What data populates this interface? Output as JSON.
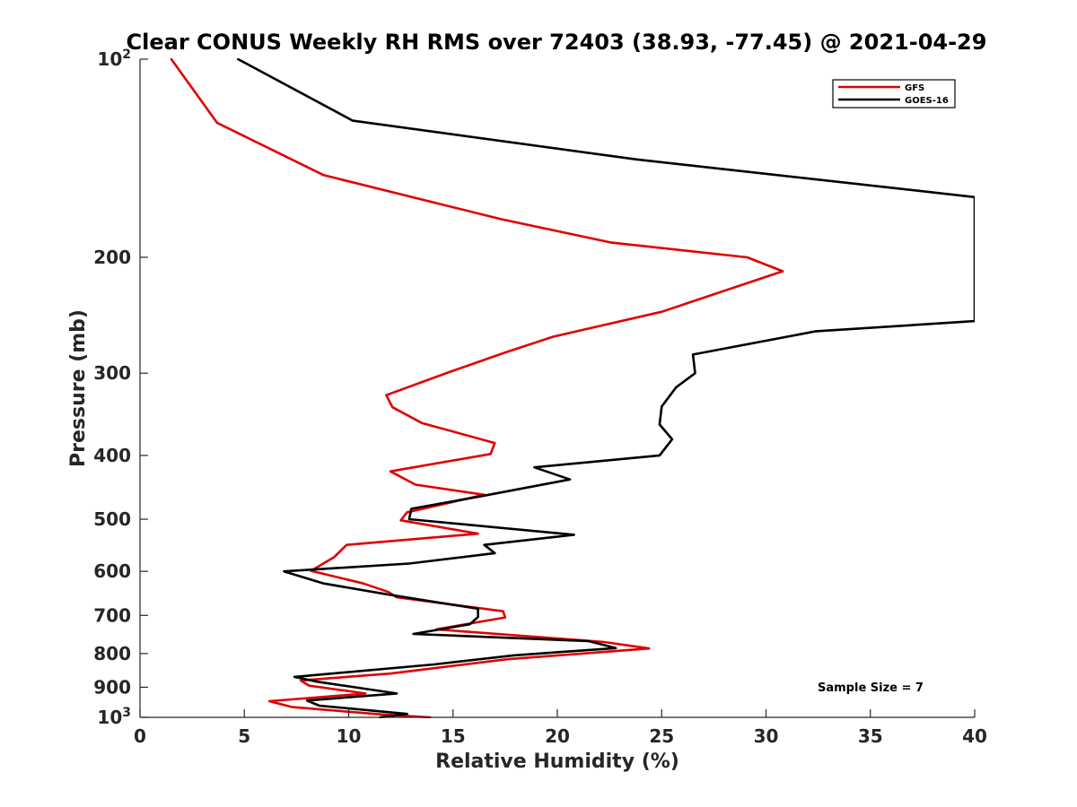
{
  "chart_data": {
    "type": "line",
    "title": "Clear CONUS Weekly RH RMS over 72403 (38.93, -77.45) @ 2021-04-29",
    "xlabel": "Relative Humidity (%)",
    "ylabel": "Pressure (mb)",
    "xlim": [
      0,
      40
    ],
    "ylim": [
      100,
      1000
    ],
    "yscale": "log",
    "y_reversed": true,
    "grid": false,
    "legend_location": "top-right",
    "x_ticks": [
      "0",
      "5",
      "10",
      "15",
      "20",
      "25",
      "30",
      "35",
      "40"
    ],
    "y_ticks": [
      {
        "value": 100,
        "base": "10",
        "exp": "2"
      },
      {
        "value": 200,
        "base": "200",
        "exp": ""
      },
      {
        "value": 300,
        "base": "300",
        "exp": ""
      },
      {
        "value": 400,
        "base": "400",
        "exp": ""
      },
      {
        "value": 500,
        "base": "500",
        "exp": ""
      },
      {
        "value": 600,
        "base": "600",
        "exp": ""
      },
      {
        "value": 700,
        "base": "700",
        "exp": ""
      },
      {
        "value": 800,
        "base": "800",
        "exp": ""
      },
      {
        "value": 900,
        "base": "900",
        "exp": ""
      },
      {
        "value": 1000,
        "base": "10",
        "exp": "3"
      }
    ],
    "annotation": "Sample Size = 7",
    "series": [
      {
        "name": "GFS",
        "color": "#e00000",
        "points": [
          [
            1.5,
            100
          ],
          [
            3.7,
            125
          ],
          [
            8.8,
            150
          ],
          [
            17.3,
            175
          ],
          [
            22.6,
            190
          ],
          [
            29.1,
            200
          ],
          [
            30.8,
            210
          ],
          [
            25.0,
            242
          ],
          [
            19.8,
            264
          ],
          [
            17.5,
            279
          ],
          [
            14.8,
            299
          ],
          [
            11.8,
            324
          ],
          [
            12.1,
            338
          ],
          [
            13.5,
            357
          ],
          [
            17.0,
            383
          ],
          [
            16.8,
            398
          ],
          [
            12.0,
            423
          ],
          [
            13.2,
            443
          ],
          [
            16.5,
            459
          ],
          [
            12.8,
            488
          ],
          [
            12.5,
            502
          ],
          [
            16.2,
            526
          ],
          [
            9.9,
            547
          ],
          [
            9.3,
            571
          ],
          [
            8.2,
            599
          ],
          [
            10.7,
            626
          ],
          [
            11.9,
            645
          ],
          [
            12.3,
            657
          ],
          [
            17.4,
            690
          ],
          [
            17.5,
            705
          ],
          [
            14.2,
            735
          ],
          [
            22.2,
            768
          ],
          [
            24.4,
            786
          ],
          [
            17.6,
            816
          ],
          [
            12.0,
            858
          ],
          [
            7.7,
            879
          ],
          [
            8.1,
            895
          ],
          [
            10.8,
            920
          ],
          [
            6.2,
            945
          ],
          [
            7.3,
            965
          ],
          [
            11.6,
            990
          ],
          [
            13.9,
            1000
          ]
        ]
      },
      {
        "name": "GOES-16",
        "color": "#000000",
        "points": [
          [
            4.7,
            100
          ],
          [
            10.2,
            124
          ],
          [
            23.8,
            142
          ],
          [
            40.0,
            162
          ],
          [
            40.0,
            250
          ],
          [
            32.4,
            259
          ],
          [
            26.5,
            281
          ],
          [
            26.6,
            300
          ],
          [
            25.7,
            315
          ],
          [
            25.0,
            337
          ],
          [
            24.9,
            359
          ],
          [
            25.5,
            378
          ],
          [
            24.9,
            400
          ],
          [
            18.9,
            417
          ],
          [
            20.6,
            435
          ],
          [
            16.4,
            461
          ],
          [
            13.0,
            482
          ],
          [
            12.9,
            500
          ],
          [
            20.8,
            528
          ],
          [
            16.5,
            547
          ],
          [
            17.0,
            563
          ],
          [
            12.9,
            584
          ],
          [
            6.9,
            600
          ],
          [
            8.8,
            626
          ],
          [
            11.8,
            650
          ],
          [
            16.2,
            684
          ],
          [
            16.2,
            704
          ],
          [
            15.8,
            722
          ],
          [
            13.1,
            747
          ],
          [
            21.5,
            766
          ],
          [
            22.8,
            785
          ],
          [
            17.9,
            805
          ],
          [
            14.1,
            831
          ],
          [
            7.4,
            868
          ],
          [
            8.5,
            883
          ],
          [
            12.3,
            920
          ],
          [
            8.0,
            943
          ],
          [
            8.6,
            960
          ],
          [
            12.8,
            988
          ],
          [
            11.5,
            1000
          ]
        ]
      }
    ]
  }
}
